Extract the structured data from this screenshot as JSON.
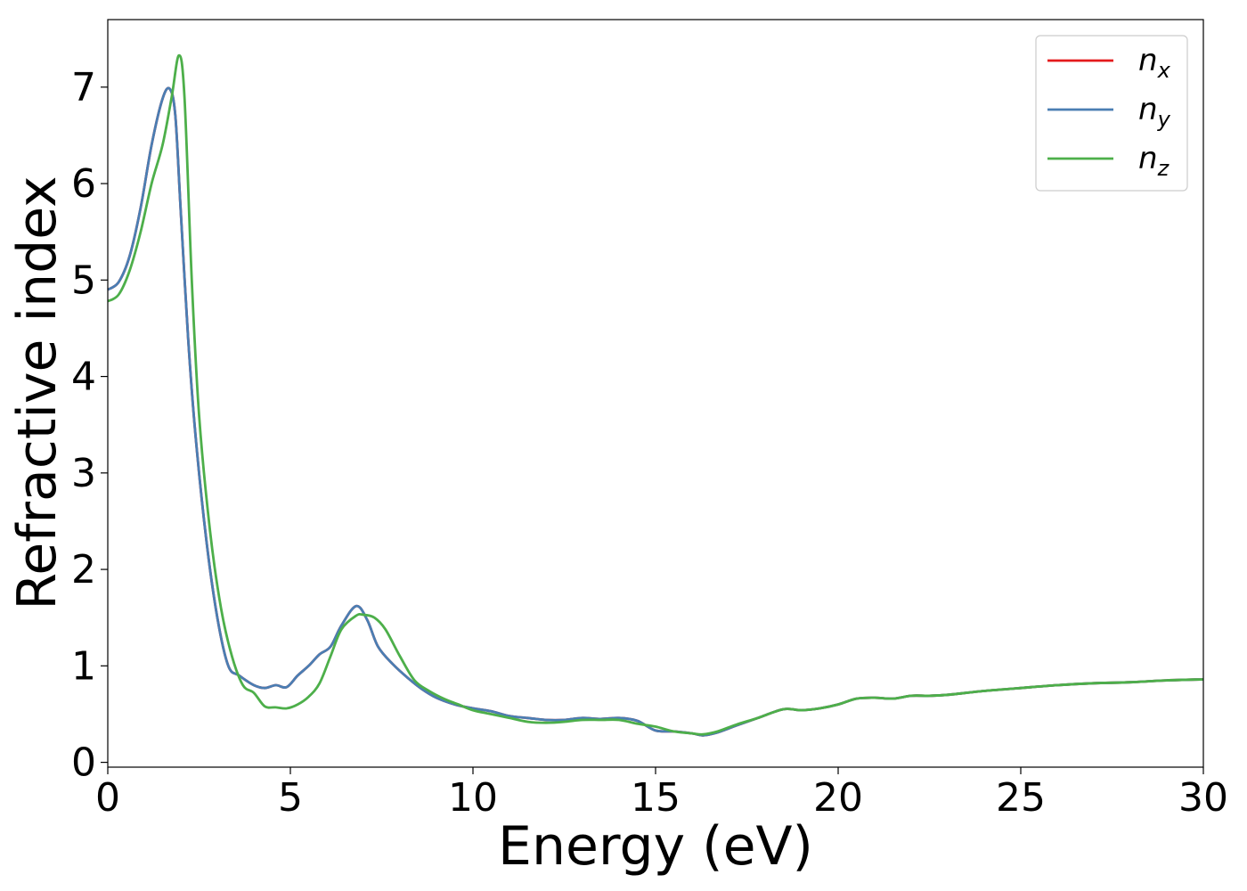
{
  "chart_data": {
    "type": "line",
    "title": "",
    "xlabel": "Energy (eV)",
    "ylabel": "Refractive index",
    "xlim": [
      0,
      30
    ],
    "ylim": [
      -0.05,
      7.7
    ],
    "xticks": [
      0,
      5,
      10,
      15,
      20,
      25,
      30
    ],
    "yticks": [
      0,
      1,
      2,
      3,
      4,
      5,
      6,
      7
    ],
    "grid": false,
    "legend_position": "upper-right",
    "series": [
      {
        "name": "n",
        "subscript": "x",
        "color": "#e41a1c",
        "x": [
          0,
          0.3,
          0.6,
          0.9,
          1.2,
          1.5,
          1.7,
          1.85,
          2.0,
          2.2,
          2.4,
          2.7,
          3.0,
          3.3,
          3.6,
          4.0,
          4.3,
          4.6,
          4.9,
          5.2,
          5.5,
          5.8,
          6.1,
          6.4,
          6.8,
          7.1,
          7.4,
          7.8,
          8.2,
          8.6,
          9.0,
          9.5,
          10.0,
          10.5,
          11.0,
          11.5,
          12.0,
          12.5,
          13.0,
          13.5,
          14.0,
          14.5,
          15.0,
          15.5,
          16.0,
          16.3,
          16.7,
          17.2,
          17.8,
          18.5,
          19.0,
          19.5,
          20.0,
          20.5,
          21.0,
          21.5,
          22.0,
          22.5,
          23.0,
          24.0,
          25.0,
          26.0,
          27.0,
          28.0,
          29.0,
          30.0
        ],
        "y": [
          4.9,
          4.98,
          5.25,
          5.75,
          6.4,
          6.88,
          6.98,
          6.7,
          5.7,
          4.4,
          3.4,
          2.3,
          1.5,
          1.0,
          0.9,
          0.8,
          0.77,
          0.8,
          0.78,
          0.9,
          1.0,
          1.12,
          1.2,
          1.42,
          1.62,
          1.48,
          1.2,
          1.02,
          0.88,
          0.76,
          0.67,
          0.6,
          0.56,
          0.53,
          0.48,
          0.46,
          0.44,
          0.44,
          0.46,
          0.45,
          0.46,
          0.43,
          0.33,
          0.32,
          0.3,
          0.28,
          0.31,
          0.38,
          0.46,
          0.55,
          0.54,
          0.56,
          0.6,
          0.66,
          0.67,
          0.66,
          0.69,
          0.69,
          0.7,
          0.74,
          0.77,
          0.8,
          0.82,
          0.83,
          0.85,
          0.86
        ]
      },
      {
        "name": "n",
        "subscript": "y",
        "color": "#4a7eb3",
        "x": [
          0,
          0.3,
          0.6,
          0.9,
          1.2,
          1.5,
          1.7,
          1.85,
          2.0,
          2.2,
          2.4,
          2.7,
          3.0,
          3.3,
          3.6,
          4.0,
          4.3,
          4.6,
          4.9,
          5.2,
          5.5,
          5.8,
          6.1,
          6.4,
          6.8,
          7.1,
          7.4,
          7.8,
          8.2,
          8.6,
          9.0,
          9.5,
          10.0,
          10.5,
          11.0,
          11.5,
          12.0,
          12.5,
          13.0,
          13.5,
          14.0,
          14.5,
          15.0,
          15.5,
          16.0,
          16.3,
          16.7,
          17.2,
          17.8,
          18.5,
          19.0,
          19.5,
          20.0,
          20.5,
          21.0,
          21.5,
          22.0,
          22.5,
          23.0,
          24.0,
          25.0,
          26.0,
          27.0,
          28.0,
          29.0,
          30.0
        ],
        "y": [
          4.9,
          4.98,
          5.25,
          5.75,
          6.4,
          6.88,
          6.98,
          6.7,
          5.7,
          4.4,
          3.4,
          2.3,
          1.5,
          1.0,
          0.9,
          0.8,
          0.77,
          0.8,
          0.78,
          0.9,
          1.0,
          1.12,
          1.2,
          1.42,
          1.62,
          1.48,
          1.2,
          1.02,
          0.88,
          0.76,
          0.67,
          0.6,
          0.56,
          0.53,
          0.48,
          0.46,
          0.44,
          0.44,
          0.46,
          0.45,
          0.46,
          0.43,
          0.33,
          0.32,
          0.3,
          0.28,
          0.31,
          0.38,
          0.46,
          0.55,
          0.54,
          0.56,
          0.6,
          0.66,
          0.67,
          0.66,
          0.69,
          0.69,
          0.7,
          0.74,
          0.77,
          0.8,
          0.82,
          0.83,
          0.85,
          0.86
        ]
      },
      {
        "name": "n",
        "subscript": "z",
        "color": "#4daf4a",
        "x": [
          0,
          0.3,
          0.6,
          0.9,
          1.2,
          1.5,
          1.75,
          1.95,
          2.1,
          2.3,
          2.5,
          2.8,
          3.1,
          3.4,
          3.7,
          4.0,
          4.3,
          4.6,
          4.9,
          5.2,
          5.5,
          5.8,
          6.1,
          6.4,
          6.8,
          7.0,
          7.3,
          7.6,
          8.0,
          8.4,
          8.8,
          9.2,
          9.6,
          10.0,
          10.5,
          11.0,
          11.5,
          12.0,
          12.5,
          13.0,
          13.5,
          14.0,
          14.5,
          15.0,
          15.5,
          16.0,
          16.3,
          16.7,
          17.2,
          17.8,
          18.5,
          19.0,
          19.5,
          20.0,
          20.5,
          21.0,
          21.5,
          22.0,
          22.5,
          23.0,
          24.0,
          25.0,
          26.0,
          27.0,
          28.0,
          29.0,
          30.0
        ],
        "y": [
          4.78,
          4.85,
          5.1,
          5.5,
          6.0,
          6.4,
          6.9,
          7.33,
          6.9,
          5.0,
          3.6,
          2.4,
          1.6,
          1.1,
          0.8,
          0.72,
          0.58,
          0.57,
          0.56,
          0.6,
          0.68,
          0.82,
          1.1,
          1.38,
          1.52,
          1.53,
          1.5,
          1.38,
          1.1,
          0.85,
          0.74,
          0.66,
          0.6,
          0.54,
          0.5,
          0.46,
          0.42,
          0.41,
          0.42,
          0.44,
          0.44,
          0.44,
          0.4,
          0.37,
          0.32,
          0.3,
          0.29,
          0.32,
          0.39,
          0.46,
          0.55,
          0.54,
          0.56,
          0.6,
          0.66,
          0.67,
          0.66,
          0.69,
          0.69,
          0.7,
          0.74,
          0.77,
          0.8,
          0.82,
          0.83,
          0.85,
          0.86
        ]
      }
    ]
  }
}
